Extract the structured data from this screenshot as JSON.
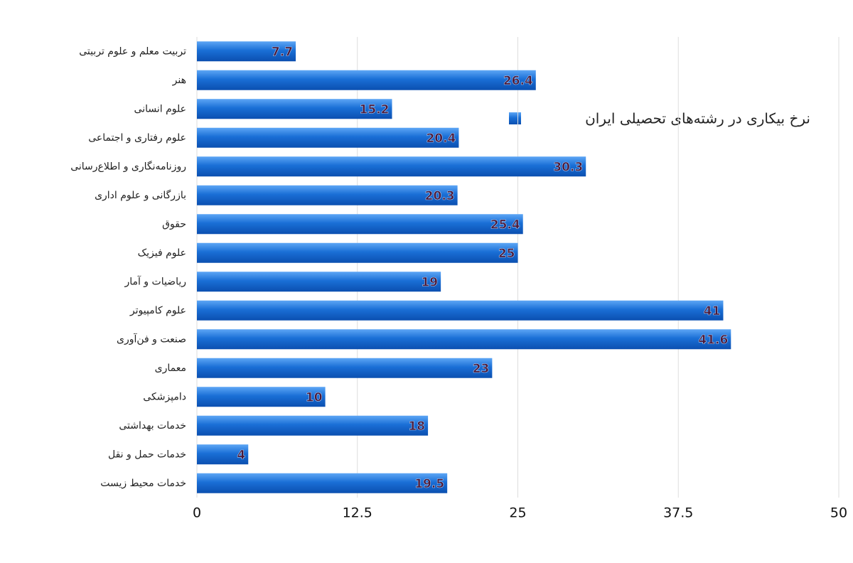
{
  "chart_data": {
    "type": "bar",
    "orientation": "horizontal",
    "legend": "نرخ بیکاری در رشته‌های تحصیلی ایران",
    "legend_position": "upper right",
    "categories": [
      "تربیت معلم و علوم تربیتی",
      "هنر",
      "علوم انسانی",
      "علوم رفتاری و اجتماعی",
      "روزنامه‌نگاری و اطلاع‌رسانی",
      "بازرگانی و علوم اداری",
      "حقوق",
      "علوم فیزیک",
      "ریاضیات و آمار",
      "علوم کامپیوتر",
      "صنعت و فن‌آوری",
      "معماری",
      "دامپزشکی",
      "خدمات بهداشتی",
      "خدمات حمل و نقل",
      "خدمات محیط زیست"
    ],
    "values": [
      7.7,
      26.4,
      15.2,
      20.4,
      30.3,
      20.3,
      25.4,
      25,
      19,
      41,
      41.6,
      23,
      10,
      18,
      4,
      19.5
    ],
    "color": "#1a6fd6",
    "xlim": [
      0,
      50
    ],
    "xticks": [
      0,
      12.5,
      25,
      37.5,
      50
    ],
    "grid": true
  }
}
